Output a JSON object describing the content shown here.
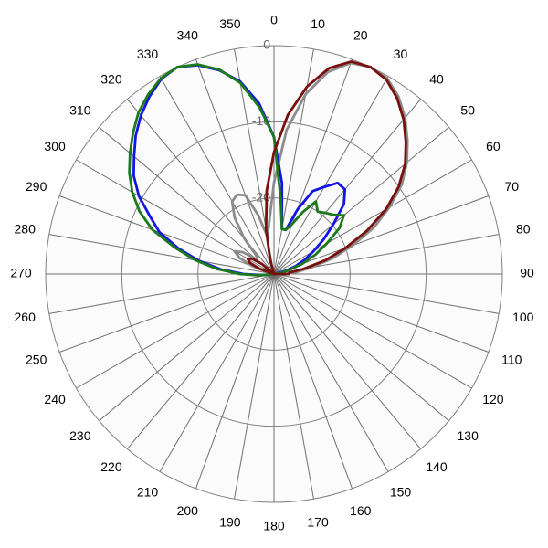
{
  "chart_data": {
    "type": "polar",
    "theta": [
      0,
      5,
      10,
      15,
      20,
      25,
      30,
      35,
      40,
      45,
      50,
      55,
      60,
      65,
      70,
      75,
      80,
      85,
      90,
      95,
      100,
      105,
      110,
      115,
      120,
      125,
      130,
      135,
      140,
      145,
      150,
      155,
      160,
      165,
      170,
      175,
      180,
      185,
      190,
      195,
      200,
      205,
      210,
      215,
      220,
      225,
      230,
      235,
      240,
      245,
      250,
      255,
      260,
      265,
      270,
      275,
      280,
      285,
      290,
      295,
      300,
      305,
      310,
      315,
      320,
      325,
      330,
      335,
      340,
      345,
      350,
      355
    ],
    "thetaticks": [
      0,
      10,
      20,
      30,
      40,
      50,
      60,
      70,
      80,
      90,
      100,
      110,
      120,
      130,
      140,
      150,
      160,
      170,
      180,
      190,
      200,
      210,
      220,
      230,
      240,
      250,
      260,
      270,
      280,
      290,
      300,
      310,
      320,
      330,
      340,
      350
    ],
    "rlim": [
      -30,
      0
    ],
    "rticks": [
      -20,
      -10,
      0
    ],
    "series": [
      {
        "color": "#8c8c8c",
        "values": [
          -18,
          -11,
          -6,
          -2.5,
          -0.5,
          0,
          -0.3,
          -1.5,
          -3.2,
          -5.2,
          -7.2,
          -9.5,
          -12.5,
          -15.5,
          -19,
          -22,
          -25,
          -27,
          -28.5,
          -30,
          -30,
          -30,
          -30,
          -30,
          -30,
          -30,
          -30,
          -30,
          -30,
          -30,
          -30,
          -30,
          -30,
          -30,
          -30,
          -30,
          -30,
          -30,
          -30,
          -30,
          -30,
          -30,
          -30,
          -30,
          -30,
          -30,
          -30,
          -30,
          -30,
          -30,
          -30,
          -30,
          -30,
          -30,
          -30,
          -30,
          -30,
          -30,
          -27,
          -25,
          -24,
          -25,
          -27,
          -27,
          -24,
          -21,
          -19,
          -18.5,
          -19,
          -22,
          -25,
          -23
        ]
      },
      {
        "color": "#1414e6",
        "values": [
          -12,
          -18,
          -24,
          -24,
          -21,
          -18,
          -16.8,
          -15.4,
          -15.5,
          -17,
          -19.8,
          -22,
          -24,
          -25.5,
          -27,
          -28.5,
          -30,
          -30,
          -30,
          -30,
          -30,
          -30,
          -30,
          -30,
          -30,
          -30,
          -30,
          -30,
          -30,
          -30,
          -30,
          -30,
          -30,
          -30,
          -30,
          -30,
          -30,
          -30,
          -30,
          -30,
          -30,
          -30,
          -30,
          -30,
          -30,
          -30,
          -30,
          -30,
          -30,
          -30,
          -30,
          -30,
          -30,
          -28.5,
          -26,
          -23,
          -20,
          -17,
          -14,
          -12,
          -9.5,
          -7.5,
          -6,
          -4.3,
          -2.8,
          -1.5,
          -0.4,
          0,
          -0.8,
          -2.3,
          -4.3,
          -7.5
        ]
      },
      {
        "color": "#1b7a1b",
        "values": [
          -12,
          -20,
          -24,
          -24,
          -23,
          -21,
          -19,
          -20,
          -19.5,
          -19,
          -18,
          -19.5,
          -22,
          -24,
          -26,
          -28,
          -29,
          -30,
          -30,
          -30,
          -30,
          -30,
          -30,
          -30,
          -30,
          -30,
          -30,
          -30,
          -30,
          -30,
          -30,
          -30,
          -30,
          -30,
          -30,
          -30,
          -30,
          -30,
          -30,
          -30,
          -30,
          -30,
          -30,
          -30,
          -30,
          -30,
          -30,
          -30,
          -30,
          -30,
          -30,
          -30,
          -30,
          -28,
          -25.5,
          -22.5,
          -19.5,
          -16.5,
          -13,
          -10.5,
          -8.5,
          -6.8,
          -5.3,
          -3.8,
          -2.3,
          -1.2,
          -0.3,
          0,
          -0.7,
          -2.2,
          -4.5,
          -8
        ]
      },
      {
        "color": "#7a0f0f",
        "values": [
          -14,
          -9,
          -5,
          -2,
          -0.3,
          0,
          -0.5,
          -1.8,
          -3.5,
          -5.5,
          -7.5,
          -10,
          -13,
          -16.5,
          -20,
          -23,
          -26,
          -28,
          -28,
          -30,
          -30,
          -30,
          -30,
          -30,
          -30,
          -30,
          -30,
          -30,
          -30,
          -30,
          -30,
          -30,
          -30,
          -30,
          -30,
          -30,
          -30,
          -30,
          -30,
          -30,
          -30,
          -30,
          -30,
          -30,
          -30,
          -30,
          -30,
          -30,
          -30,
          -30,
          -30,
          -30,
          -30,
          -30,
          -30,
          -30,
          -30,
          -30,
          -28,
          -26.5,
          -26,
          -26.5,
          -28,
          -30,
          -30,
          -30,
          -30,
          -30,
          -30,
          -28,
          -24,
          -19
        ]
      }
    ]
  }
}
